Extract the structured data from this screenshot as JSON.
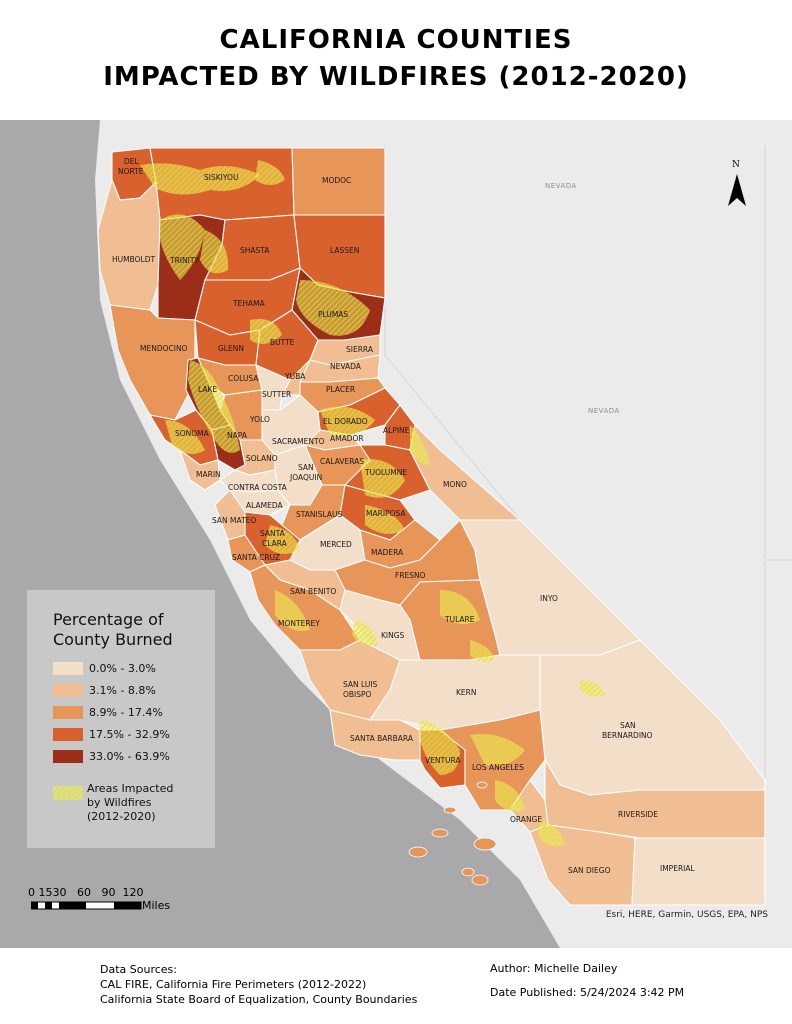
{
  "title": {
    "line1": "CALIFORNIA COUNTIES",
    "line2": "IMPACTED BY WILDFIRES (2012-2020)"
  },
  "colors": {
    "ocean": "#a9a9ab",
    "land": "#ebebeb",
    "class0": "#f3dec9",
    "class1": "#f0be92",
    "class2": "#e8955a",
    "class3": "#d9612e",
    "class4": "#9c2d19",
    "fire": "#eeee5a"
  },
  "states": [
    "NEVADA",
    "NEVADA"
  ],
  "counties": [
    {
      "name": "DEL",
      "cls": 3
    },
    {
      "name": "NORTE",
      "cls": 3
    },
    {
      "name": "SISKIYOU",
      "cls": 3
    },
    {
      "name": "MODOC",
      "cls": 2
    },
    {
      "name": "HUMBOLDT",
      "cls": 1
    },
    {
      "name": "TRINITY",
      "cls": 4
    },
    {
      "name": "SHASTA",
      "cls": 3
    },
    {
      "name": "LASSEN",
      "cls": 3
    },
    {
      "name": "TEHAMA",
      "cls": 3
    },
    {
      "name": "PLUMAS",
      "cls": 4
    },
    {
      "name": "MENDOCINO",
      "cls": 2
    },
    {
      "name": "GLENN",
      "cls": 3
    },
    {
      "name": "BUTTE",
      "cls": 3
    },
    {
      "name": "SIERRA",
      "cls": 1
    },
    {
      "name": "NEVADA",
      "cls": 1
    },
    {
      "name": "YUBA",
      "cls": 1
    },
    {
      "name": "COLUSA",
      "cls": 2
    },
    {
      "name": "LAKE",
      "cls": 4
    },
    {
      "name": "SUTTER",
      "cls": 0
    },
    {
      "name": "PLACER",
      "cls": 2
    },
    {
      "name": "YOLO",
      "cls": 2
    },
    {
      "name": "EL DORADO",
      "cls": 3
    },
    {
      "name": "SONOMA",
      "cls": 3
    },
    {
      "name": "NAPA",
      "cls": 4
    },
    {
      "name": "SACRAMENTO",
      "cls": 0
    },
    {
      "name": "AMADOR",
      "cls": 1
    },
    {
      "name": "ALPINE",
      "cls": 3
    },
    {
      "name": "SOLANO",
      "cls": 1
    },
    {
      "name": "CALAVERAS",
      "cls": 2
    },
    {
      "name": "TUOLUMNE",
      "cls": 3
    },
    {
      "name": "MARIN",
      "cls": 1
    },
    {
      "name": "SAN",
      "cls": 0
    },
    {
      "name": "JOAQUIN",
      "cls": 0
    },
    {
      "name": "MONO",
      "cls": 1
    },
    {
      "name": "CONTRA COSTA",
      "cls": 0
    },
    {
      "name": "ALAMEDA",
      "cls": 0
    },
    {
      "name": "STANISLAUS",
      "cls": 2
    },
    {
      "name": "MARIPOSA",
      "cls": 3
    },
    {
      "name": "SAN MATEO",
      "cls": 1
    },
    {
      "name": "SANTA",
      "cls": 3
    },
    {
      "name": "CLARA",
      "cls": 3
    },
    {
      "name": "MERCED",
      "cls": 0
    },
    {
      "name": "MADERA",
      "cls": 2
    },
    {
      "name": "SANTA CRUZ",
      "cls": 2
    },
    {
      "name": "FRESNO",
      "cls": 2
    },
    {
      "name": "INYO",
      "cls": 0
    },
    {
      "name": "SAN BENITO",
      "cls": 1
    },
    {
      "name": "TULARE",
      "cls": 2
    },
    {
      "name": "MONTEREY",
      "cls": 2
    },
    {
      "name": "KINGS",
      "cls": 0
    },
    {
      "name": "SAN LUIS",
      "cls": 1
    },
    {
      "name": "OBISPO",
      "cls": 1
    },
    {
      "name": "KERN",
      "cls": 0
    },
    {
      "name": "SAN",
      "cls": 0
    },
    {
      "name": "BERNARDINO",
      "cls": 0
    },
    {
      "name": "SANTA BARBARA",
      "cls": 1
    },
    {
      "name": "VENTURA",
      "cls": 3
    },
    {
      "name": "LOS ANGELES",
      "cls": 2
    },
    {
      "name": "ORANGE",
      "cls": 1
    },
    {
      "name": "RIVERSIDE",
      "cls": 1
    },
    {
      "name": "SAN DIEGO",
      "cls": 1
    },
    {
      "name": "IMPERIAL",
      "cls": 0
    }
  ],
  "north_arrow": {
    "label": "N"
  },
  "legend": {
    "title_line1": "Percentage of",
    "title_line2": "County Burned",
    "classes": [
      {
        "label": "0.0% - 3.0%",
        "color": "#f3dec9"
      },
      {
        "label": "3.1% - 8.8%",
        "color": "#f0be92"
      },
      {
        "label": "8.9% - 17.4%",
        "color": "#e8955a"
      },
      {
        "label": "17.5% - 32.9%",
        "color": "#d9612e"
      },
      {
        "label": "33.0% - 63.9%",
        "color": "#9c2d19"
      }
    ],
    "fire_label_line1": "Areas Impacted",
    "fire_label_line2": "by Wildfires",
    "fire_label_line3": "(2012-2020)"
  },
  "scalebar": {
    "ticks": "0 1530   60   90  120",
    "unit": "Miles"
  },
  "attribution": "Esri, HERE, Garmin, USGS, EPA, NPS",
  "sources": {
    "heading": "Data Sources:",
    "line1": "CAL FIRE, California Fire Perimeters (2012-2022)",
    "line2": "California State Board of Equalization, County Boundaries"
  },
  "author": "Author: Michelle Dailey",
  "published": "Date Published: 5/24/2024 3:42 PM"
}
